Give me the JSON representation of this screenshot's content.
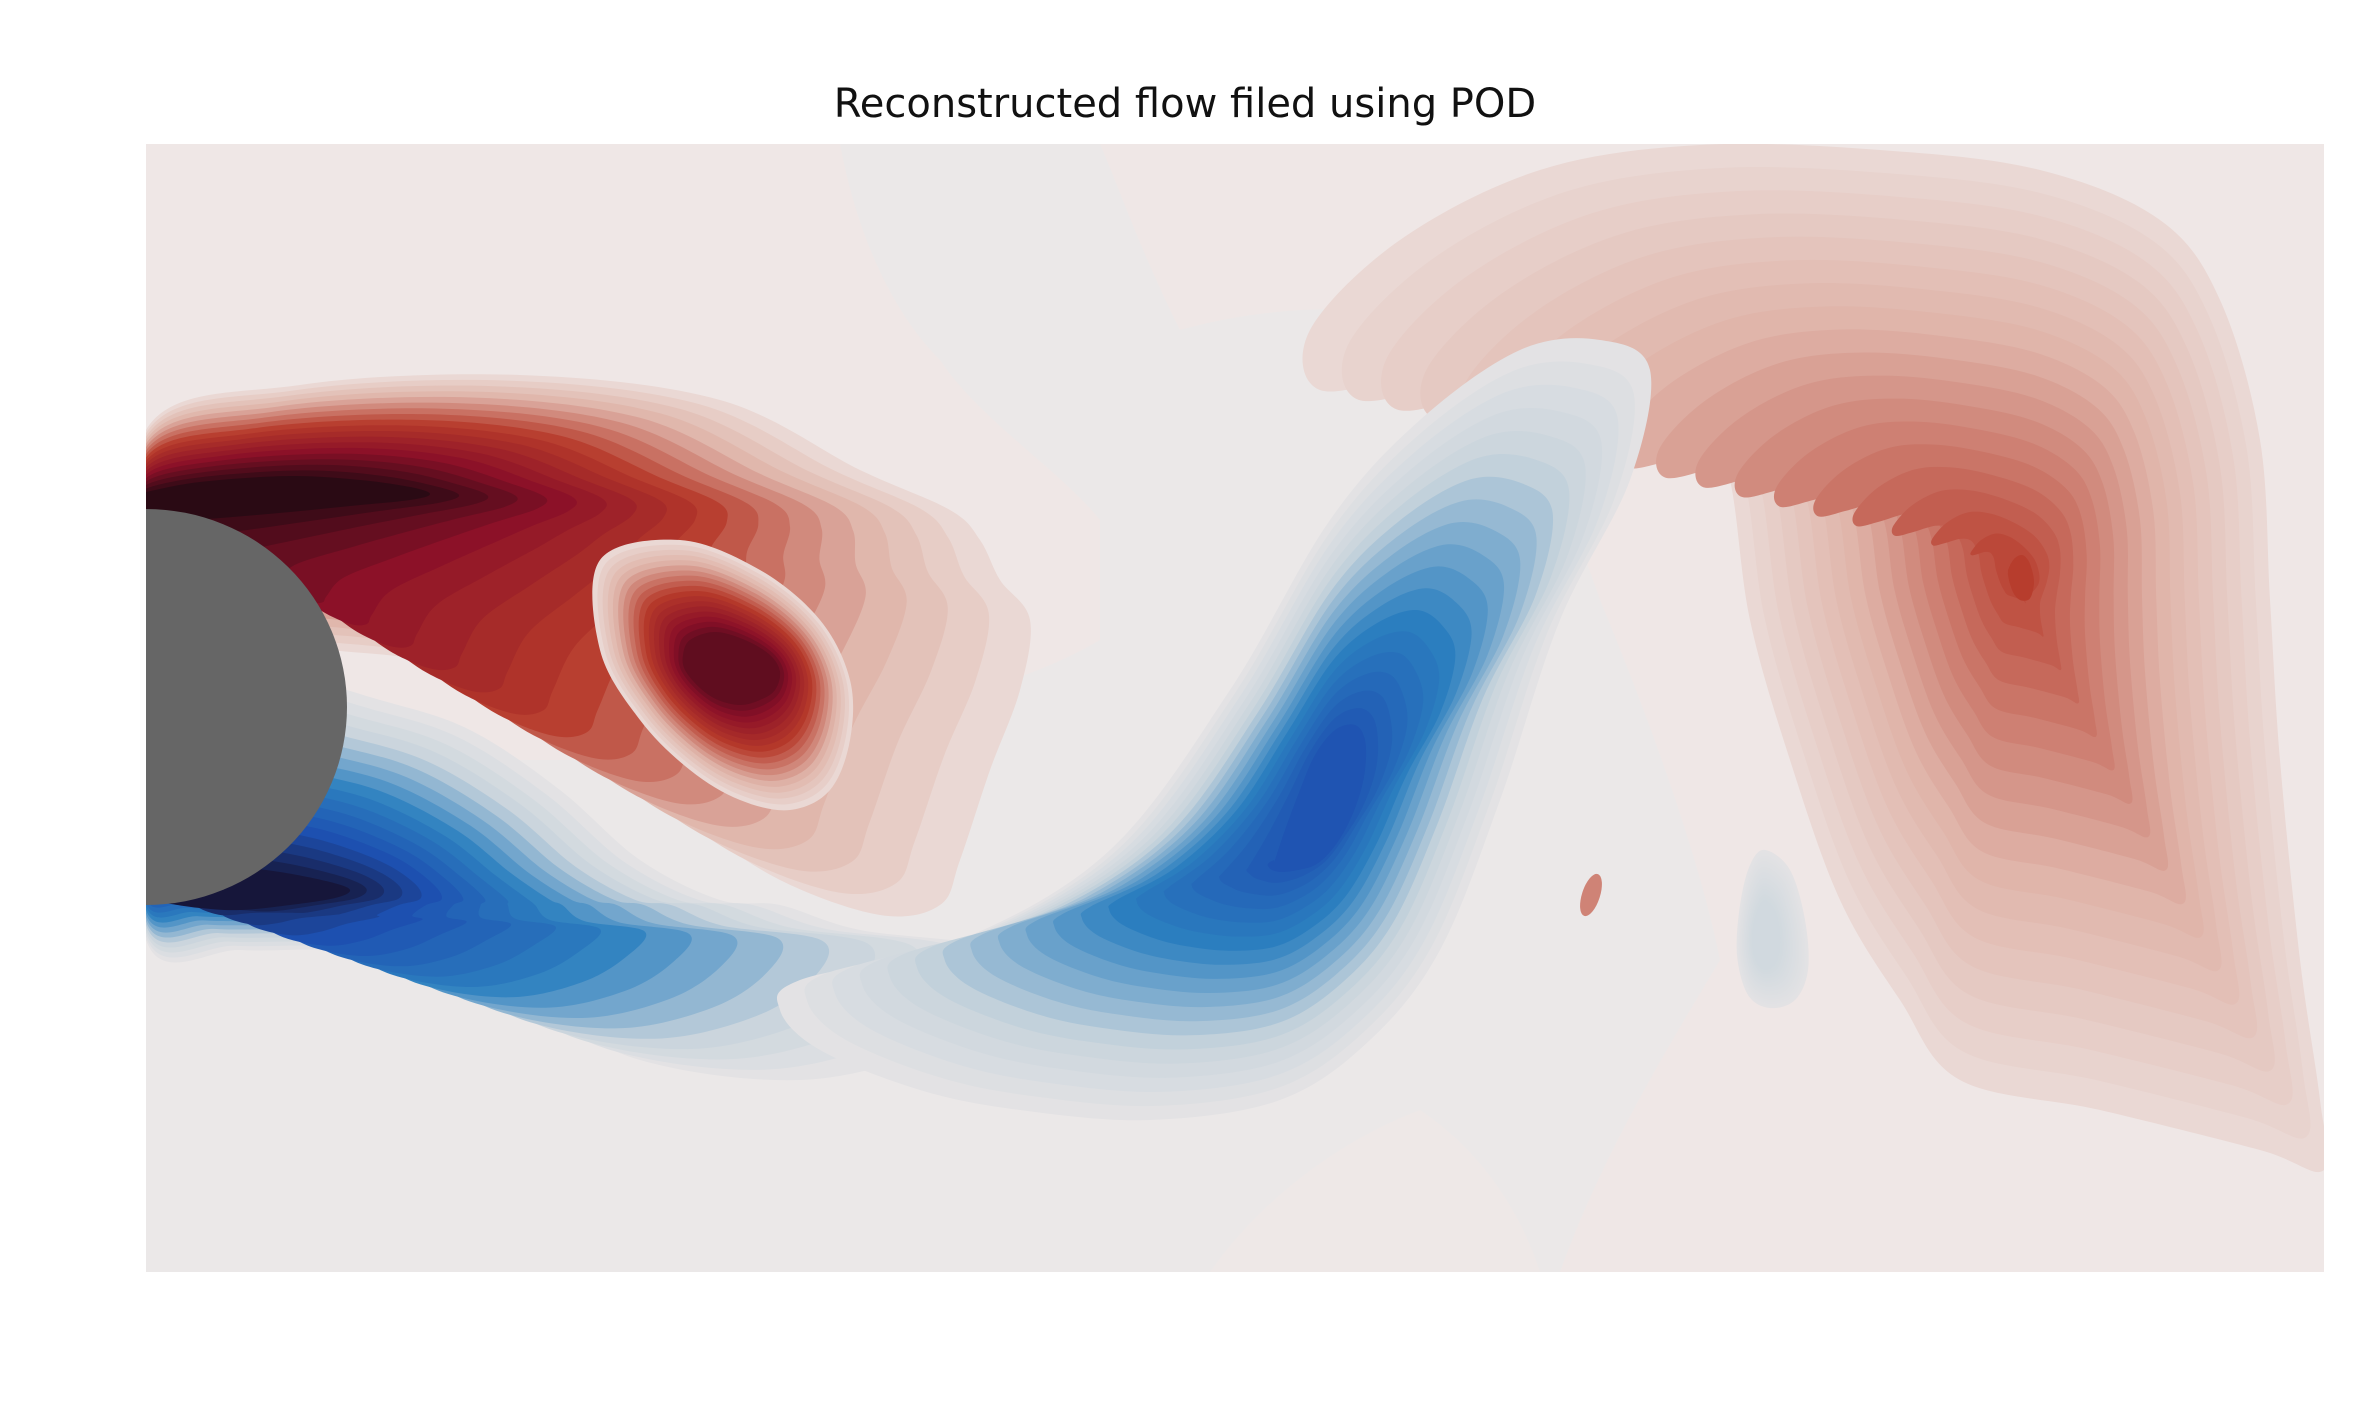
{
  "chart_data": {
    "type": "heatmap",
    "subtype": "filled-contour",
    "title": "Reconstructed flow filed using POD",
    "xlabel": "",
    "ylabel": "",
    "axes_visible": false,
    "grid": false,
    "legend": "none",
    "colormap": "diverging red-blue (positive = red, negative = blue)",
    "obstacle": {
      "shape": "circle",
      "color": "#666666"
    },
    "colors": {
      "background": "#ebe8e8",
      "neutral": "#efe9e8",
      "red_extreme": "#2a0a14",
      "red_strong": "#8b1028",
      "red_mid": "#b63a2a",
      "red_light": "#dfb3a8",
      "blue_extreme": "#16163a",
      "blue_strong": "#1d4fb0",
      "blue_mid": "#2c80c0",
      "blue_light": "#c8d4dc",
      "cylinder": "#666666"
    },
    "structures": [
      {
        "name": "upper shear layer",
        "sign": "positive",
        "peak_level": 1.0
      },
      {
        "name": "first downstream vortex",
        "sign": "positive",
        "peak_level": 0.85
      },
      {
        "name": "lower shear layer",
        "sign": "negative",
        "peak_level": -1.0
      },
      {
        "name": "second downstream vortex",
        "sign": "negative",
        "peak_level": -0.7
      },
      {
        "name": "third downstream vortex",
        "sign": "positive",
        "peak_level": 0.45
      },
      {
        "name": "weak negative patch",
        "sign": "negative",
        "peak_level": -0.12
      }
    ]
  }
}
